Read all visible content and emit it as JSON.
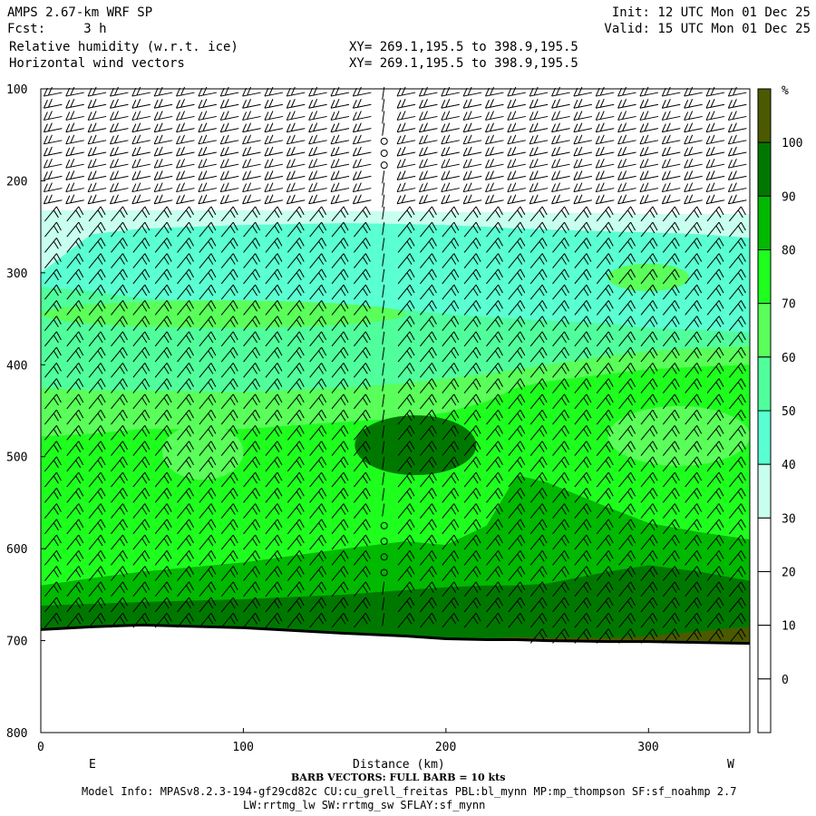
{
  "header": {
    "title": "AMPS 2.67-km WRF SP",
    "fcst": "Fcst:     3 h",
    "init": "Init: 12 UTC Mon 01 Dec 25",
    "valid": "Valid: 15 UTC Mon 01 Dec 25",
    "field1": "Relative humidity (w.r.t. ice)",
    "field2": "Horizontal wind vectors",
    "xy1": "XY= 269.1,195.5 to 398.9,195.5",
    "xy2": "XY= 269.1,195.5 to 398.9,195.5"
  },
  "footer": {
    "barb_note": "BARB VECTORS:  FULL BARB = 10 kts",
    "model_info": "Model Info: MPASv8.2.3-194-gf29cd82c CU:cu_grell_freitas PBL:bl_mynn MP:mp_thompson SF:sf_noahmp 2.7",
    "model_info2": "LW:rrtmg_lw SW:rrtmg_sw SFLAY:sf_mynn"
  },
  "chart_data": {
    "type": "contour-cross-section",
    "xlabel": "Distance (km)",
    "x_left_label": "E",
    "x_right_label": "W",
    "xlim": [
      0,
      350
    ],
    "ylim": [
      100,
      800
    ],
    "x_ticks": [
      0,
      100,
      200,
      300
    ],
    "y_ticks": [
      100,
      200,
      300,
      400,
      500,
      600,
      700,
      800
    ],
    "colorbar": {
      "unit": "%",
      "labels": [
        "100",
        "90",
        "80",
        "70",
        "60",
        "50",
        "40",
        "30",
        "20",
        "10",
        "0"
      ],
      "colors": [
        "#4b5a00",
        "#007800",
        "#00b900",
        "#1eff1e",
        "#5aff5a",
        "#50ff9c",
        "#5affd2",
        "#c8ffee",
        "#ffffff",
        "#ffffff",
        "#ffffff",
        "#ffffff"
      ]
    },
    "band_boundaries_x_km": [
      0,
      25,
      50,
      100,
      150,
      180,
      200,
      220,
      235,
      250,
      280,
      300,
      325,
      350
    ],
    "band_boundaries": [
      {
        "level": 30,
        "color": "#c8ffee",
        "p": [
          232,
          232,
          232,
          232,
          233,
          233,
          234,
          234,
          234,
          235,
          235,
          236,
          236,
          236
        ]
      },
      {
        "level": 40,
        "color": "#5affd2",
        "p": [
          300,
          258,
          252,
          248,
          246,
          247,
          248,
          250,
          252,
          253,
          255,
          256,
          258,
          262
        ]
      },
      {
        "level": 50,
        "color": "#50ff9c",
        "p": [
          315,
          320,
          328,
          333,
          338,
          340,
          345,
          348,
          350,
          352,
          355,
          360,
          362,
          365
        ]
      },
      {
        "level": 60,
        "color": "#5aff5a",
        "p": [
          425,
          428,
          428,
          430,
          425,
          420,
          415,
          410,
          405,
          400,
          390,
          385,
          382,
          380
        ]
      },
      {
        "level": 70,
        "color": "#1eff1e",
        "p": [
          478,
          475,
          470,
          470,
          462,
          458,
          452,
          440,
          425,
          418,
          410,
          405,
          402,
          400
        ]
      },
      {
        "level": 80,
        "color": "#00b900",
        "p": [
          640,
          632,
          625,
          615,
          600,
          592,
          596,
          575,
          520,
          528,
          555,
          572,
          582,
          590
        ]
      },
      {
        "level": 90,
        "color": "#007800",
        "p": [
          662,
          660,
          658,
          655,
          650,
          645,
          642,
          640,
          640,
          638,
          625,
          618,
          625,
          635
        ]
      },
      {
        "level": 100,
        "color": "#4b5a00",
        "p": [
          688,
          686,
          684,
          688,
          694,
          697,
          698,
          698,
          696,
          697,
          697,
          695,
          690,
          685
        ]
      }
    ],
    "terrain_p": [
      688,
      685,
      683,
      686,
      692,
      695,
      698,
      699,
      699,
      700,
      701,
      701,
      702,
      703
    ],
    "blobs": [
      {
        "level": 90,
        "color": "#007800",
        "x": [
          155,
          215
        ],
        "p": [
          455,
          520
        ]
      },
      {
        "level": 60,
        "color": "#5aff5a",
        "x": [
          0,
          180
        ],
        "p": [
          330,
          360
        ]
      },
      {
        "level": 60,
        "color": "#5aff5a",
        "x": [
          280,
          350
        ],
        "p": [
          445,
          510
        ]
      },
      {
        "level": 60,
        "color": "#5aff5a",
        "x": [
          60,
          100
        ],
        "p": [
          465,
          525
        ]
      },
      {
        "level": 60,
        "color": "#5aff5a",
        "x": [
          280,
          320
        ],
        "p": [
          290,
          320
        ]
      }
    ]
  }
}
